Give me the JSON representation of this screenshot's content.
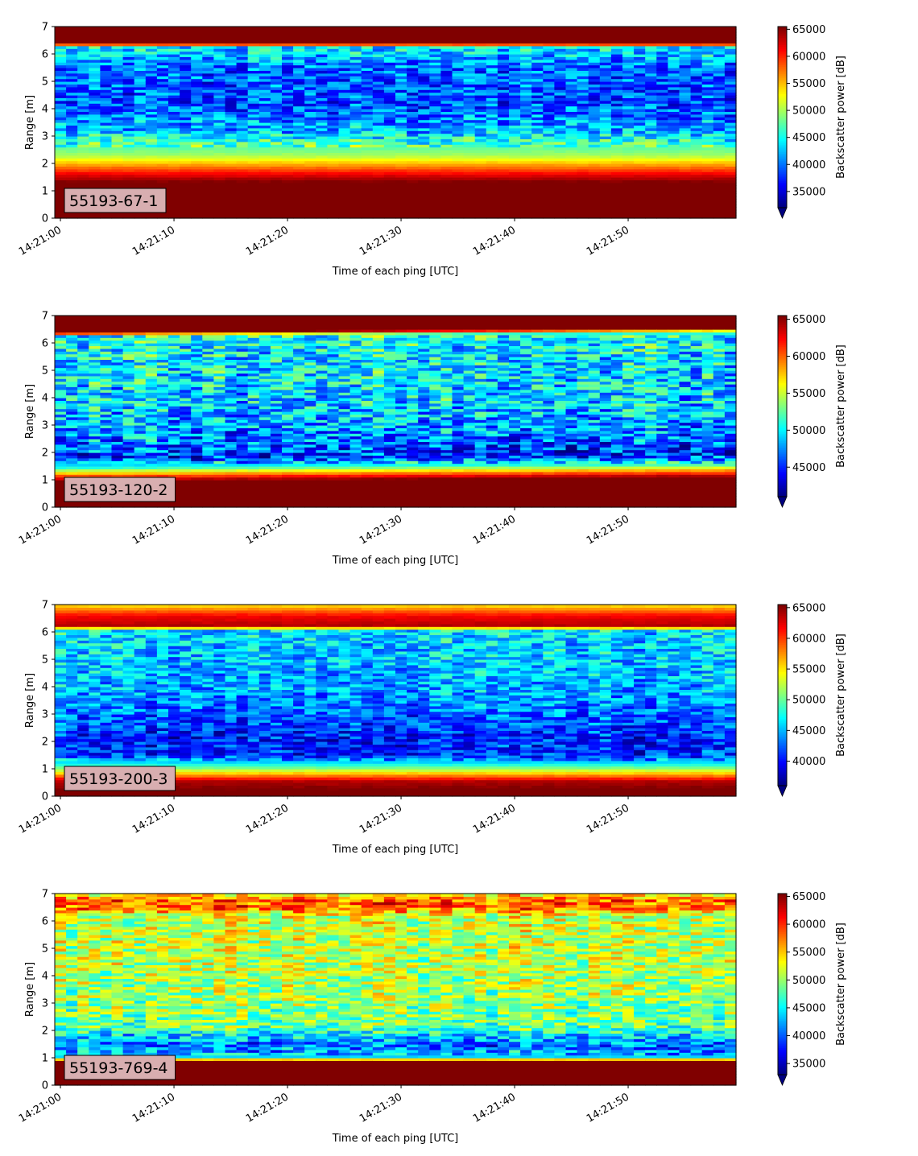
{
  "chart_data": [
    {
      "type": "heatmap",
      "badge": "55193-67-1",
      "xlabel": "Time of each ping [UTC]",
      "ylabel": "Range [m]",
      "x_ticks": [
        "14:21:00",
        "14:21:10",
        "14:21:20",
        "14:21:30",
        "14:21:40",
        "14:21:50"
      ],
      "x_range": [
        "14:20:59.5",
        "14:21:59.5"
      ],
      "y_ticks": [
        0,
        1,
        2,
        3,
        4,
        5,
        6,
        7
      ],
      "ylim": [
        0,
        7
      ],
      "colorbar": {
        "label": "Backscatter power [dB]",
        "vmin": 32000,
        "vmax": 65500,
        "ticks": [
          35000,
          40000,
          45000,
          50000,
          55000,
          60000,
          65000
        ],
        "extend": "min"
      },
      "colormap": "jet",
      "profile": [
        {
          "range": 0.0,
          "value": 70000
        },
        {
          "range": 0.25,
          "value": 66000
        },
        {
          "range": 1.3,
          "value": 66000
        },
        {
          "range": 1.6,
          "value": 62000
        },
        {
          "range": 1.9,
          "value": 57000
        },
        {
          "range": 2.3,
          "value": 50000
        },
        {
          "range": 2.8,
          "value": 46000
        },
        {
          "range": 3.2,
          "value": 42000
        },
        {
          "range": 4.2,
          "value": 38500
        },
        {
          "range": 5.5,
          "value": 39500
        },
        {
          "range": 6.25,
          "value": 44000
        },
        {
          "range": 6.4,
          "value": 66000
        },
        {
          "range": 7.0,
          "value": 66000
        }
      ],
      "noise": 4500,
      "noise_band": [
        2.6,
        6.35
      ],
      "x_trend": 0
    },
    {
      "type": "heatmap",
      "badge": "55193-120-2",
      "xlabel": "Time of each ping [UTC]",
      "ylabel": "Range [m]",
      "x_ticks": [
        "14:21:00",
        "14:21:10",
        "14:21:20",
        "14:21:30",
        "14:21:40",
        "14:21:50"
      ],
      "x_range": [
        "14:20:59.5",
        "14:21:59.5"
      ],
      "y_ticks": [
        0,
        1,
        2,
        3,
        4,
        5,
        6,
        7
      ],
      "ylim": [
        0,
        7
      ],
      "colorbar": {
        "label": "Backscatter power [dB]",
        "vmin": 41000,
        "vmax": 65500,
        "ticks": [
          45000,
          50000,
          55000,
          60000,
          65000
        ],
        "extend": "min"
      },
      "colormap": "jet",
      "profile": [
        {
          "range": 0.0,
          "value": 70000
        },
        {
          "range": 0.25,
          "value": 66000
        },
        {
          "range": 0.95,
          "value": 66000
        },
        {
          "range": 1.2,
          "value": 59000
        },
        {
          "range": 1.45,
          "value": 51000
        },
        {
          "range": 1.8,
          "value": 45000
        },
        {
          "range": 2.5,
          "value": 47500
        },
        {
          "range": 4.0,
          "value": 49500
        },
        {
          "range": 5.5,
          "value": 50000
        },
        {
          "range": 6.25,
          "value": 51000
        },
        {
          "range": 6.4,
          "value": 66000
        },
        {
          "range": 7.0,
          "value": 66000
        }
      ],
      "noise": 4200,
      "noise_band": [
        1.6,
        6.35
      ],
      "x_trend": 0.15
    },
    {
      "type": "heatmap",
      "badge": "55193-200-3",
      "xlabel": "Time of each ping [UTC]",
      "ylabel": "Range [m]",
      "x_ticks": [
        "14:21:00",
        "14:21:10",
        "14:21:20",
        "14:21:30",
        "14:21:40",
        "14:21:50"
      ],
      "x_range": [
        "14:20:59.5",
        "14:21:59.5"
      ],
      "y_ticks": [
        0,
        1,
        2,
        3,
        4,
        5,
        6,
        7
      ],
      "ylim": [
        0,
        7
      ],
      "colorbar": {
        "label": "Backscatter power [dB]",
        "vmin": 36000,
        "vmax": 65500,
        "ticks": [
          40000,
          45000,
          50000,
          55000,
          60000,
          65000
        ],
        "extend": "min"
      },
      "colormap": "jet",
      "profile": [
        {
          "range": 0.0,
          "value": 70000
        },
        {
          "range": 0.2,
          "value": 66000
        },
        {
          "range": 0.55,
          "value": 64000
        },
        {
          "range": 0.8,
          "value": 57000
        },
        {
          "range": 1.1,
          "value": 49000
        },
        {
          "range": 1.5,
          "value": 41000
        },
        {
          "range": 2.2,
          "value": 40500
        },
        {
          "range": 3.5,
          "value": 44000
        },
        {
          "range": 5.0,
          "value": 45500
        },
        {
          "range": 6.05,
          "value": 46000
        },
        {
          "range": 6.25,
          "value": 64000
        },
        {
          "range": 6.6,
          "value": 62000
        },
        {
          "range": 7.0,
          "value": 55000
        }
      ],
      "noise": 3800,
      "noise_band": [
        1.3,
        6.1
      ],
      "x_trend": 0
    },
    {
      "type": "heatmap",
      "badge": "55193-769-4",
      "xlabel": "Time of each ping [UTC]",
      "ylabel": "Range [m]",
      "x_ticks": [
        "14:21:00",
        "14:21:10",
        "14:21:20",
        "14:21:30",
        "14:21:40",
        "14:21:50"
      ],
      "x_range": [
        "14:20:59.5",
        "14:21:59.5"
      ],
      "y_ticks": [
        0,
        1,
        2,
        3,
        4,
        5,
        6,
        7
      ],
      "ylim": [
        0,
        7
      ],
      "colorbar": {
        "label": "Backscatter power [dB]",
        "vmin": 33000,
        "vmax": 65500,
        "ticks": [
          35000,
          40000,
          45000,
          50000,
          55000,
          60000,
          65000
        ],
        "extend": "min"
      },
      "colormap": "jet",
      "profile": [
        {
          "range": 0.0,
          "value": 70000
        },
        {
          "range": 0.25,
          "value": 66000
        },
        {
          "range": 0.85,
          "value": 66000
        },
        {
          "range": 1.05,
          "value": 44000
        },
        {
          "range": 1.5,
          "value": 40000
        },
        {
          "range": 2.2,
          "value": 49000
        },
        {
          "range": 4.0,
          "value": 51000
        },
        {
          "range": 6.2,
          "value": 52000
        },
        {
          "range": 6.5,
          "value": 59000
        },
        {
          "range": 6.8,
          "value": 58000
        },
        {
          "range": 7.0,
          "value": 52000
        }
      ],
      "noise": 4800,
      "noise_band": [
        1.1,
        7.0
      ],
      "x_trend": 0
    }
  ]
}
